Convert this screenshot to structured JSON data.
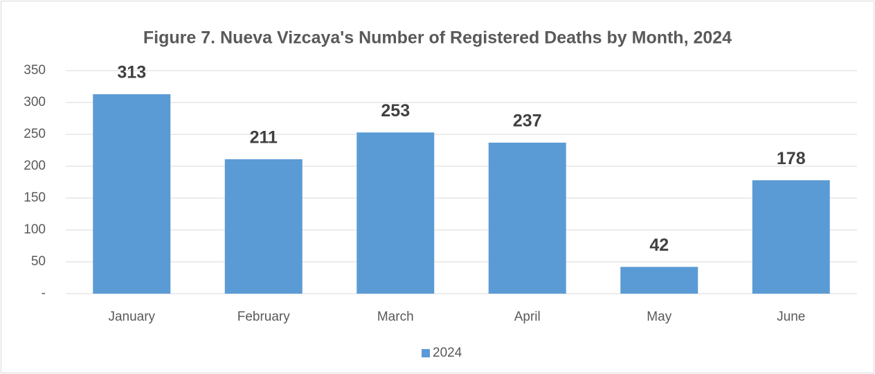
{
  "chart_data": {
    "type": "bar",
    "title": "Figure 7. Nueva Vizcaya's Number of Registered Deaths by Month, 2024",
    "categories": [
      "January",
      "February",
      "March",
      "April",
      "May",
      "June"
    ],
    "series": [
      {
        "name": "2024",
        "color": "#5b9bd5",
        "values": [
          313,
          211,
          253,
          237,
          42,
          178
        ]
      }
    ],
    "ylim": [
      0,
      350
    ],
    "yticks": [
      {
        "value": 0,
        "label": "-"
      },
      50,
      100,
      150,
      200,
      250,
      300,
      350
    ],
    "grid": true,
    "legend": "bottom"
  }
}
